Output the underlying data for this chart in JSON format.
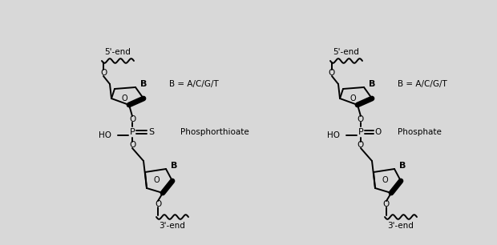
{
  "bg_color": "#d8d8d8",
  "lw": 1.4,
  "left_label": "Phosphorthioate",
  "right_label": "Phosphate",
  "b_eq": "B = A/C/G/T",
  "five_prime": "5'-end",
  "three_prime": "3'-end"
}
